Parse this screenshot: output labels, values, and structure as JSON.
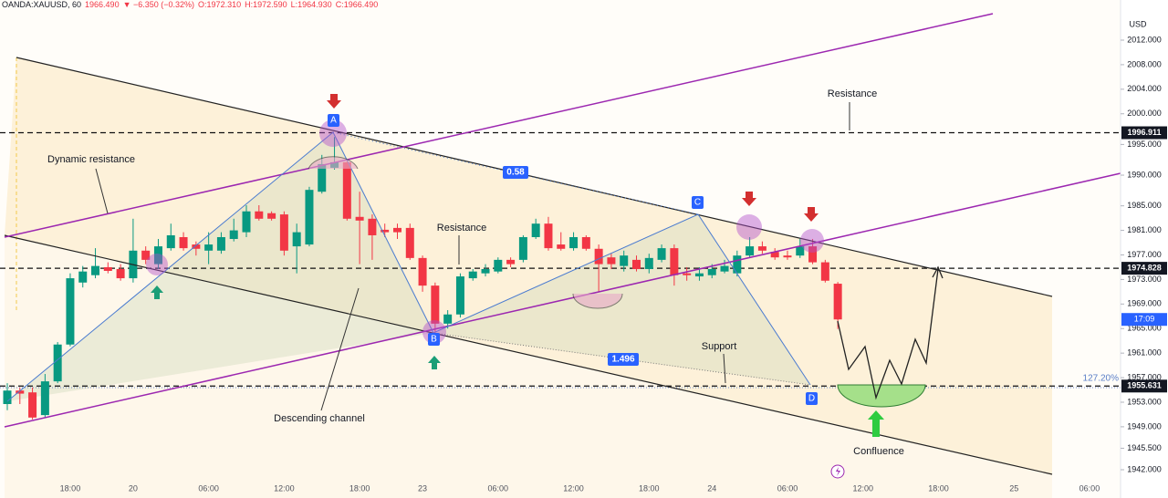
{
  "header": {
    "symbol": "OANDA:XAUUSD, 60",
    "last": "1966.490",
    "change": "▼ −6.350 (−0.32%)",
    "open": "O:1972.310",
    "high": "H:1972.590",
    "low": "L:1964.930",
    "close": "C:1966.490"
  },
  "annotations": {
    "dynamic_resistance": "Dynamic resistance",
    "resistance_top": "Resistance",
    "resistance_mid": "Resistance",
    "descending_channel": "Descending channel",
    "support": "Support",
    "confluence": "Confluence",
    "ac_ratio": "0.58",
    "bd_ratio": "1.496",
    "fib": "127.20%",
    "points": [
      "A",
      "B",
      "C",
      "D"
    ]
  },
  "chart_data": {
    "type": "candlestick",
    "currency": "USD",
    "countdown": "17:09",
    "up_color": "#089981",
    "down_color": "#f23645",
    "categories": [
      null,
      null,
      null,
      null,
      null,
      "18:00",
      null,
      null,
      null,
      null,
      "20",
      null,
      null,
      null,
      null,
      null,
      "06:00",
      null,
      null,
      null,
      null,
      null,
      "12:00",
      null,
      null,
      null,
      null,
      null,
      "18:00",
      null,
      null,
      null,
      null,
      "23",
      null,
      null,
      null,
      null,
      null,
      "06:00",
      null,
      null,
      null,
      null,
      null,
      "12:00",
      null,
      null,
      null,
      null,
      null,
      "18:00",
      null,
      null,
      null,
      null,
      "24",
      null,
      null,
      null,
      null,
      null,
      "06:00",
      null,
      null,
      null,
      null,
      null,
      "12:00",
      null,
      null,
      null,
      null,
      null,
      "18:00",
      null,
      null,
      null,
      null,
      null,
      "25",
      null,
      null,
      null,
      null,
      null,
      "06:00"
    ],
    "open": [
      1952.7,
      1954.9,
      1954.6,
      1950.9,
      1956.4,
      1962.4,
      1972.5,
      1973.7,
      1975.0,
      1974.7,
      1973.2,
      1977.7,
      1975.5,
      1978.1,
      1979.9,
      1978.7,
      1977.7,
      1977.7,
      1979.6,
      1980.7,
      1984.1,
      1983.8,
      1983.6,
      1978.4,
      1978.7,
      1987.3,
      1991.2,
      1992.1,
      1983.2,
      1982.9,
      1981.1,
      1981.4,
      1981.4,
      1976.5,
      1972.0,
      1965.8,
      1967.3,
      1973.2,
      1974.0,
      1974.3,
      1976.2,
      1976.2,
      1979.9,
      1982.1,
      1978.7,
      1978.1,
      1979.9,
      1978.0,
      1976.6,
      1975.2,
      1976.2,
      1974.7,
      1976.2,
      1978.1,
      1974.0,
      1973.5,
      1973.7,
      1974.3,
      1974.0,
      1976.9,
      1978.4,
      1977.5,
      1976.9,
      1976.9,
      1978.4,
      1975.8,
      1972.31,
      null,
      null,
      null,
      null,
      null,
      null,
      null,
      null,
      null,
      null,
      null,
      null,
      null,
      null,
      null,
      null,
      null,
      null,
      null,
      null
    ],
    "high": [
      1956.1,
      1955.4,
      1955.4,
      1957.6,
      1962.8,
      1974.0,
      1975.2,
      1978.1,
      1975.8,
      1975.5,
      1982.9,
      1978.4,
      1979.6,
      1982.1,
      1980.7,
      1979.2,
      1980.7,
      1980.7,
      1982.9,
      1985.1,
      1985.1,
      1984.1,
      1984.1,
      1982.1,
      1988.1,
      1993.3,
      1996.2,
      1992.5,
      1987.3,
      1983.6,
      1982.1,
      1982.1,
      1982.1,
      1976.9,
      1972.5,
      1968.0,
      1974.0,
      1974.7,
      1975.5,
      1976.6,
      1976.6,
      1980.2,
      1982.9,
      1983.2,
      1980.7,
      1980.7,
      1980.2,
      1978.7,
      1977.2,
      1977.7,
      1976.9,
      1977.2,
      1978.7,
      1978.7,
      1975.0,
      1975.0,
      1975.5,
      1976.2,
      1977.7,
      1979.9,
      1979.2,
      1978.1,
      1977.7,
      1979.6,
      1979.6,
      1976.2,
      1972.59,
      null,
      null,
      null,
      null,
      null,
      null,
      null,
      null,
      null,
      null,
      null,
      null,
      null,
      null,
      null,
      null,
      null,
      null,
      null,
      null
    ],
    "low": [
      1951.7,
      1952.7,
      1950.2,
      1950.5,
      1956.1,
      1962.1,
      1971.7,
      1973.2,
      1974.0,
      1972.8,
      1972.5,
      1975.5,
      1974.7,
      1977.7,
      1977.7,
      1976.9,
      1975.5,
      1977.2,
      1979.2,
      1979.9,
      1982.6,
      1982.6,
      1976.9,
      1974.0,
      1978.4,
      1987.0,
      1990.9,
      1982.6,
      1975.5,
      1976.2,
      1979.9,
      1979.6,
      1976.2,
      1971.0,
      1964.3,
      1965.0,
      1966.8,
      1972.8,
      1973.5,
      1974.0,
      1975.0,
      1975.8,
      1979.6,
      1977.7,
      1977.7,
      1977.7,
      1977.7,
      1971.0,
      1974.7,
      1974.3,
      1974.3,
      1974.0,
      1975.8,
      1972.0,
      1972.8,
      1972.8,
      1973.2,
      1974.0,
      1973.5,
      1976.5,
      1977.2,
      1976.2,
      1976.2,
      1976.5,
      1975.5,
      1972.5,
      1964.93,
      null,
      null,
      null,
      null,
      null,
      null,
      null,
      null,
      null,
      null,
      null,
      null,
      null,
      null,
      null,
      null,
      null,
      null,
      null,
      null
    ],
    "close": [
      1954.9,
      1954.4,
      1950.5,
      1956.4,
      1962.4,
      1973.2,
      1974.3,
      1975.2,
      1974.4,
      1973.2,
      1977.7,
      1976.2,
      1978.4,
      1980.2,
      1978.1,
      1978.0,
      1978.7,
      1979.9,
      1981.0,
      1984.1,
      1982.9,
      1982.9,
      1977.7,
      1980.7,
      1987.6,
      1991.8,
      1992.1,
      1982.9,
      1982.6,
      1980.2,
      1980.7,
      1980.7,
      1976.5,
      1972.0,
      1965.8,
      1967.3,
      1973.5,
      1974.3,
      1974.7,
      1976.2,
      1975.5,
      1979.9,
      1982.1,
      1978.1,
      1978.0,
      1979.9,
      1978.0,
      1975.5,
      1975.5,
      1976.9,
      1974.7,
      1976.5,
      1978.1,
      1973.7,
      1973.7,
      1974.0,
      1974.7,
      1975.2,
      1976.9,
      1978.4,
      1977.7,
      1976.6,
      1976.6,
      1978.4,
      1975.8,
      1972.8,
      1966.49,
      null,
      null,
      null,
      null,
      null,
      null,
      null,
      null,
      null,
      null,
      null,
      null,
      null,
      null,
      null,
      null,
      null,
      null,
      null,
      null
    ],
    "ylim": [
      1939.77,
      2018.54
    ],
    "yticks": [
      {
        "value": 2012,
        "label": "2012.000"
      },
      {
        "value": 2008,
        "label": "2008.000"
      },
      {
        "value": 2004,
        "label": "2004.000"
      },
      {
        "value": 2000,
        "label": "2000.000"
      },
      {
        "value": 1995,
        "label": "1995.000"
      },
      {
        "value": 1990,
        "label": "1990.000"
      },
      {
        "value": 1985,
        "label": "1985.000"
      },
      {
        "value": 1981,
        "label": "1981.000"
      },
      {
        "value": 1977,
        "label": "1977.000"
      },
      {
        "value": 1973,
        "label": "1973.000"
      },
      {
        "value": 1969,
        "label": "1969.000"
      },
      {
        "value": 1965,
        "label": "1965.000"
      },
      {
        "value": 1961,
        "label": "1961.000"
      },
      {
        "value": 1957,
        "label": "1957.000"
      },
      {
        "value": 1953,
        "label": "1953.000"
      },
      {
        "value": 1949,
        "label": "1949.000"
      },
      {
        "value": 1945.5,
        "label": "1945.500"
      },
      {
        "value": 1942,
        "label": "1942.000"
      }
    ],
    "levels": [
      1996.911,
      1974.828,
      1955.631
    ],
    "grid": false
  }
}
